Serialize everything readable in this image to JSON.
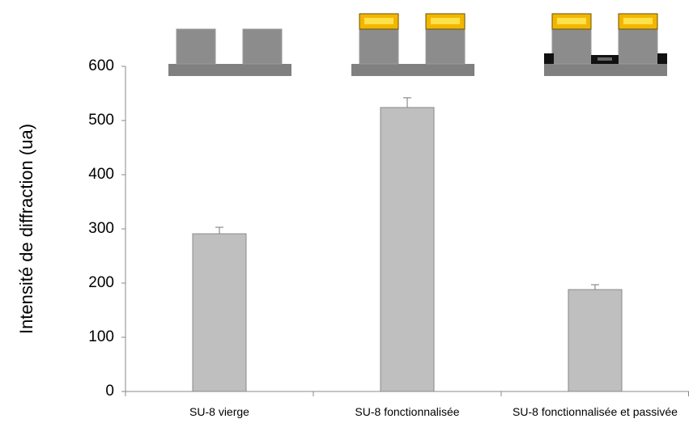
{
  "chart_data": {
    "type": "bar",
    "y_label": "Intensité de diffraction (ua)",
    "categories": [
      "SU-8 vierge",
      "SU-8 fonctionnalisée",
      "SU-8 fonctionnalisée et passivée"
    ],
    "values": [
      291,
      524,
      188
    ],
    "errors": [
      12,
      18,
      9
    ],
    "color": "#bfbfbf",
    "ylim": [
      0,
      600
    ],
    "yticks": [
      0,
      100,
      200,
      300,
      400,
      500,
      600
    ],
    "grid": false
  }
}
